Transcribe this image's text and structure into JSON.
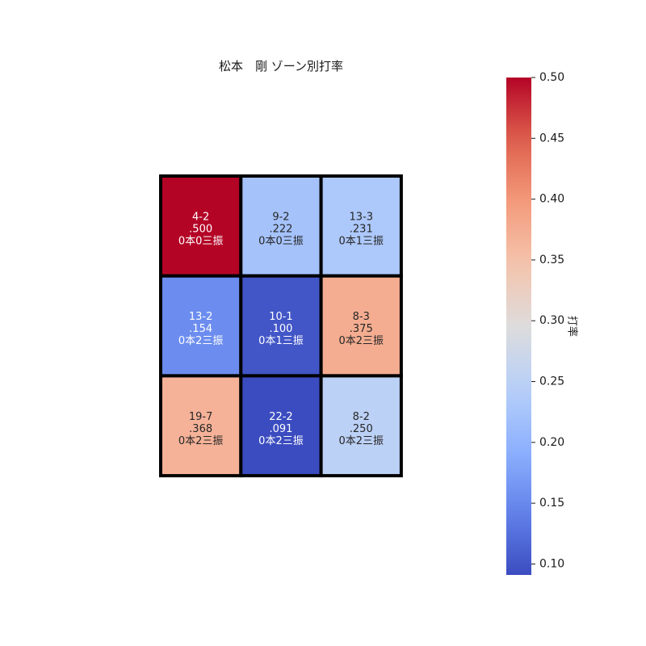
{
  "chart_data": {
    "type": "heatmap",
    "title": "松本　剛 ゾーン別打率",
    "rows": 3,
    "cols": 3,
    "cells": [
      [
        {
          "record": "4-2",
          "avg": 0.5,
          "avg_label": ".500",
          "summary": "0本0三振"
        },
        {
          "record": "9-2",
          "avg": 0.222,
          "avg_label": ".222",
          "summary": "0本0三振"
        },
        {
          "record": "13-3",
          "avg": 0.231,
          "avg_label": ".231",
          "summary": "0本1三振"
        }
      ],
      [
        {
          "record": "13-2",
          "avg": 0.154,
          "avg_label": ".154",
          "summary": "0本2三振"
        },
        {
          "record": "10-1",
          "avg": 0.1,
          "avg_label": ".100",
          "summary": "0本1三振"
        },
        {
          "record": "8-3",
          "avg": 0.375,
          "avg_label": ".375",
          "summary": "0本2三振"
        }
      ],
      [
        {
          "record": "19-7",
          "avg": 0.368,
          "avg_label": ".368",
          "summary": "0本2三振"
        },
        {
          "record": "22-2",
          "avg": 0.091,
          "avg_label": ".091",
          "summary": "0本2三振"
        },
        {
          "record": "8-2",
          "avg": 0.25,
          "avg_label": ".250",
          "summary": "0本2三振"
        }
      ]
    ],
    "colorbar": {
      "label": "打率",
      "range": [
        0.091,
        0.5
      ],
      "ticks": [
        0.1,
        0.15,
        0.2,
        0.25,
        0.3,
        0.35,
        0.4,
        0.45,
        0.5
      ],
      "tick_labels": [
        "0.10",
        "0.15",
        "0.20",
        "0.25",
        "0.30",
        "0.35",
        "0.40",
        "0.45",
        "0.50"
      ],
      "colormap": "coolwarm"
    }
  }
}
